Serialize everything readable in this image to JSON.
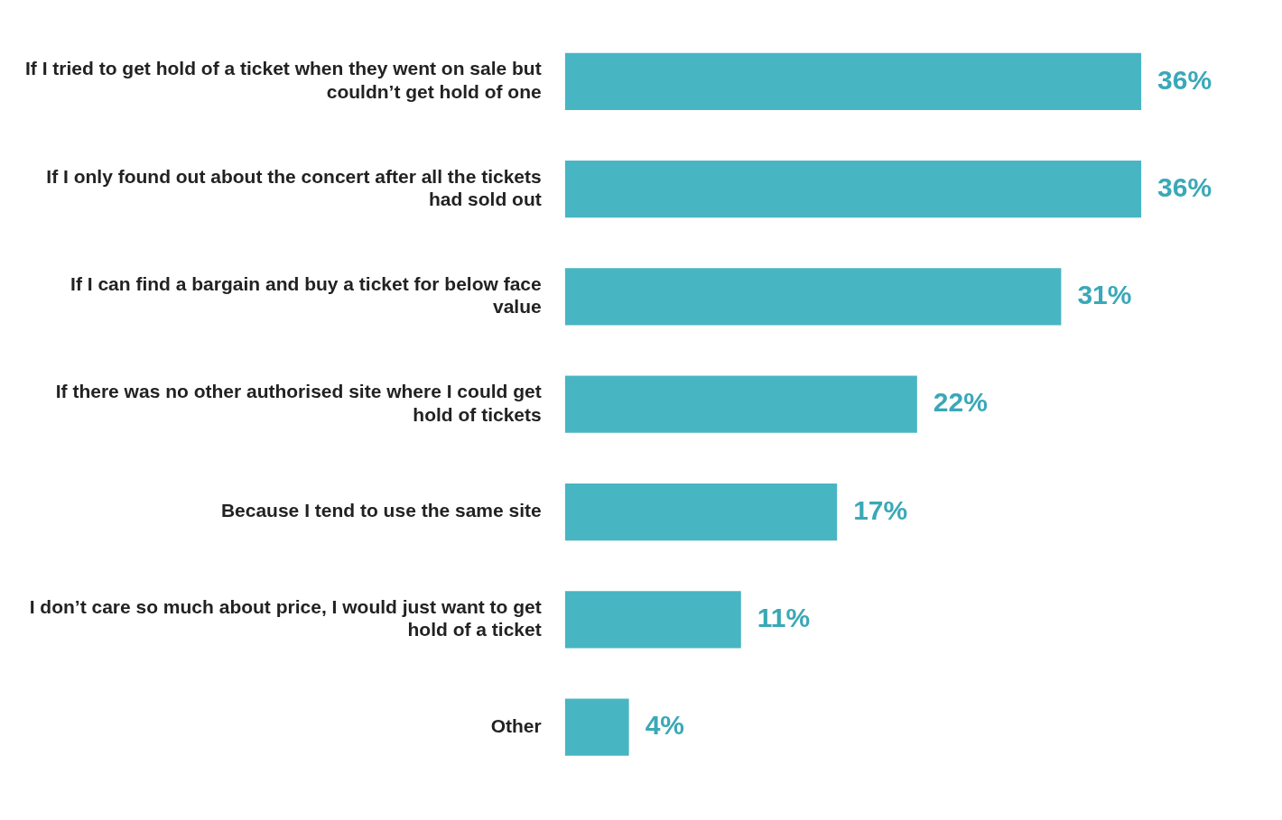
{
  "chart_data": {
    "type": "bar",
    "orientation": "horizontal",
    "categories": [
      "If I tried to get hold of a ticket when they went on sale but couldn’t get hold of one",
      "If I only found out about the concert after all the tickets had sold out",
      "If I can find a bargain and buy a ticket for below face value",
      "If there was no other authorised site where I could get hold of tickets",
      "Because I tend to use the same site",
      "I don’t care so much about price, I would just want to get hold of a ticket",
      "Other"
    ],
    "values": [
      36,
      36,
      31,
      22,
      17,
      11,
      4
    ],
    "value_labels": [
      "36%",
      "36%",
      "31%",
      "22%",
      "17%",
      "11%",
      "4%"
    ],
    "color": "#48b5c3",
    "grid": false,
    "legend": false
  }
}
